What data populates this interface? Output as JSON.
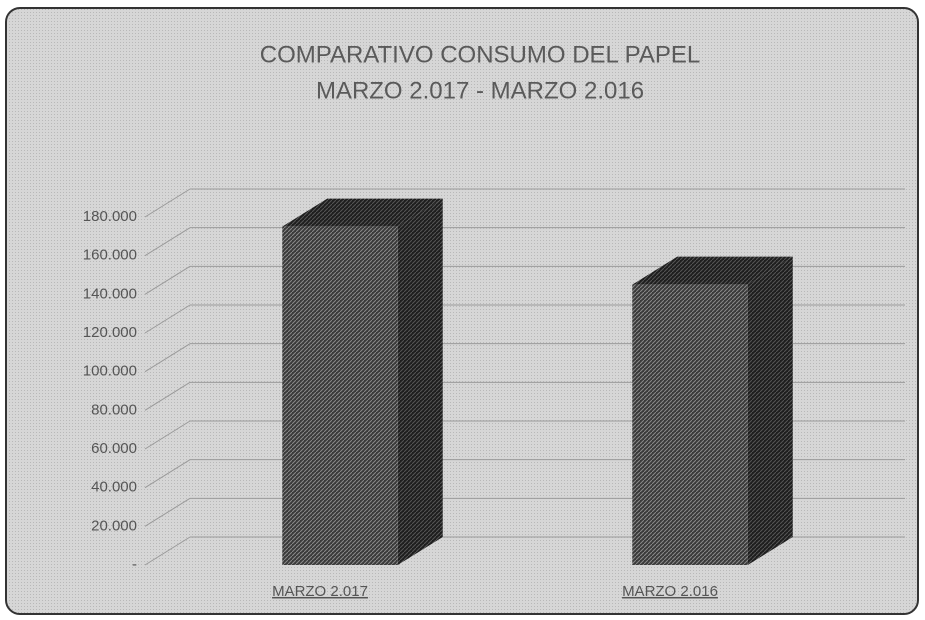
{
  "chart_data": {
    "type": "bar3d",
    "title": "COMPARATIVO CONSUMO DEL PAPEL",
    "subtitle": "MARZO 2.017 - MARZO 2.016",
    "categories": [
      "MARZO 2.017",
      "MARZO 2.016"
    ],
    "values": [
      175000,
      145000
    ],
    "color": "#3a3a3a",
    "ylim": [
      0,
      180000
    ],
    "yticks": [
      {
        "value": 0,
        "label": "-"
      },
      {
        "value": 20000,
        "label": "20.000"
      },
      {
        "value": 40000,
        "label": "40.000"
      },
      {
        "value": 60000,
        "label": "60.000"
      },
      {
        "value": 80000,
        "label": "80.000"
      },
      {
        "value": 100000,
        "label": "100.000"
      },
      {
        "value": 120000,
        "label": "120.000"
      },
      {
        "value": 140000,
        "label": "140.000"
      },
      {
        "value": 160000,
        "label": "160.000"
      },
      {
        "value": 180000,
        "label": "180.000"
      }
    ],
    "grid": true
  }
}
